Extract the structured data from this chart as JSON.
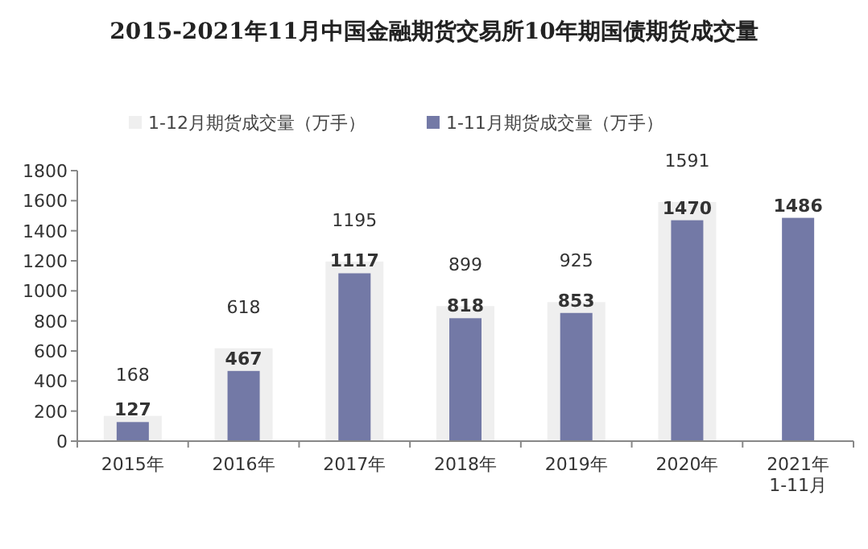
{
  "chart_data": {
    "type": "bar",
    "title": "2015-2021年11月中国金融期货交易所10年期国债期货成交量",
    "categories": [
      "2015年",
      "2016年",
      "2017年",
      "2018年",
      "2019年",
      "2020年",
      "2021年\n1-11月"
    ],
    "series": [
      {
        "name": "1-12月期货成交量（万手）",
        "color": "#efefef",
        "values": [
          168,
          618,
          1195,
          899,
          925,
          1591,
          null
        ]
      },
      {
        "name": "1-11月期货成交量（万手）",
        "color": "#7379a6",
        "values": [
          127,
          467,
          1117,
          818,
          853,
          1470,
          1486
        ]
      }
    ],
    "ylim": [
      0,
      1800
    ],
    "yticks": [
      0,
      200,
      400,
      600,
      800,
      1000,
      1200,
      1400,
      1600,
      1800
    ],
    "grid": false,
    "legend": "top",
    "data_labels": true
  }
}
